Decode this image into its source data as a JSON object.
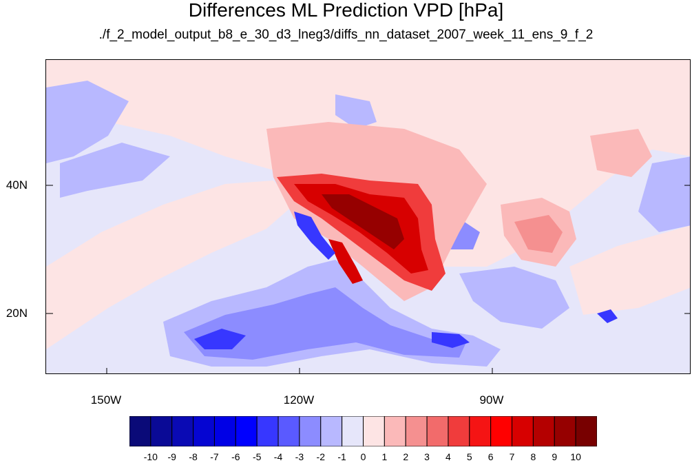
{
  "title": "Differences ML Prediction VPD [hPa]",
  "subtitle": "./f_2_model_output_b8_e_30_d3_lneg3/diffs_nn_dataset_2007_week_11_ens_9_f_2",
  "lat_labels": [
    "40N",
    "20N"
  ],
  "lon_labels": [
    "150W",
    "120W",
    "90W"
  ],
  "colorbar": {
    "levels": [
      "-10",
      "-9",
      "-8",
      "-7",
      "-6",
      "-5",
      "-4",
      "-3",
      "-2",
      "-1",
      "0",
      "1",
      "2",
      "3",
      "4",
      "5",
      "6",
      "7",
      "8",
      "9",
      "10"
    ],
    "colors": [
      "#0a0a78",
      "#0a0a96",
      "#0a0ab4",
      "#0505d2",
      "#0000e6",
      "#0000ff",
      "#3737ff",
      "#5a5aff",
      "#8c8cff",
      "#b8b8ff",
      "#e6e6fa",
      "#fde4e4",
      "#fbb9b9",
      "#f59090",
      "#f26b6b",
      "#f03c3c",
      "#f51414",
      "#ff0000",
      "#d70000",
      "#b40000",
      "#960000",
      "#780000"
    ]
  },
  "map": {
    "lon_range": [
      -161,
      -61
    ],
    "lat_range": [
      11,
      60
    ],
    "map_colors": {
      "ocean_bg": "#e6e6fa",
      "light_red": "#fde4e4",
      "pink": "#fbb9b9",
      "red3": "#f59090",
      "red5": "#f03c3c",
      "red7": "#d70000",
      "red9": "#960000",
      "blue2": "#b8b8ff",
      "blue3": "#8c8cff",
      "blue5": "#3737ff",
      "blue7": "#0505d2"
    }
  }
}
